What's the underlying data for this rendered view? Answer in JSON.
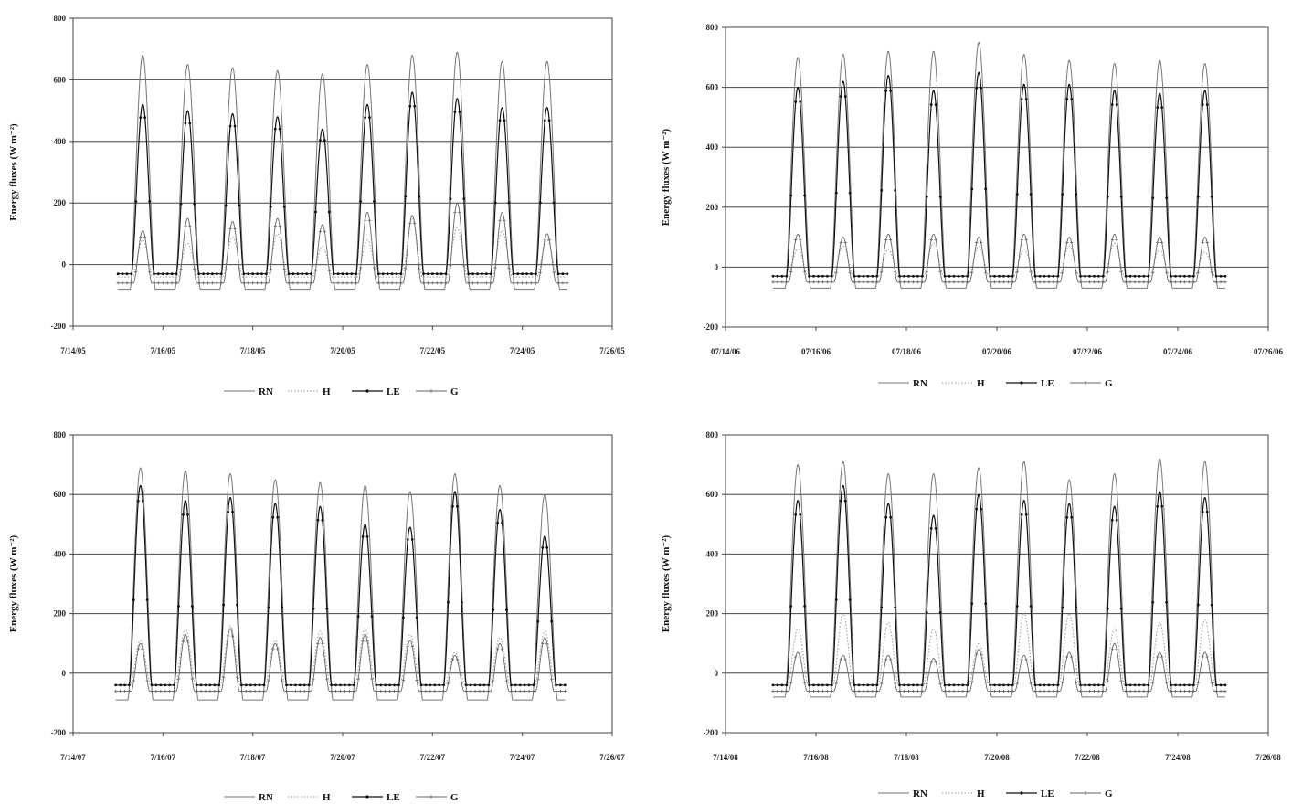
{
  "chart_data": [
    {
      "type": "line",
      "xlabel": "",
      "ylabel": "Energy fluxes (W m⁻²)",
      "ylim": [
        -200,
        800
      ],
      "yticks": [
        "-200",
        "0",
        "200",
        "400",
        "600",
        "800"
      ],
      "xticks": [
        "7/14/05",
        "7/16/05",
        "7/18/05",
        "7/20/05",
        "7/22/05",
        "7/24/05",
        "7/26/05"
      ],
      "grid": "horizontal",
      "legend": "bottom",
      "legend_labels": [
        "RN",
        "H",
        "LE",
        "G"
      ],
      "day_centers": [
        15.55,
        16.55,
        17.55,
        18.55,
        19.55,
        20.55,
        21.55,
        22.55,
        23.55,
        24.55
      ],
      "series": [
        {
          "name": "RN",
          "peak": [
            680,
            650,
            640,
            630,
            620,
            650,
            680,
            690,
            660,
            660
          ],
          "night": [
            -80,
            -80,
            -80,
            -80,
            -80,
            -80,
            -80,
            -80,
            -80,
            -80
          ]
        },
        {
          "name": "H",
          "peak": [
            80,
            70,
            90,
            100,
            60,
            80,
            150,
            120,
            110,
            80
          ],
          "night": [
            -40,
            -40,
            -40,
            -40,
            -40,
            -40,
            -40,
            -40,
            -40,
            -40
          ]
        },
        {
          "name": "LE",
          "peak": [
            520,
            500,
            490,
            480,
            440,
            520,
            560,
            540,
            510,
            510
          ],
          "night": [
            -30,
            -30,
            -30,
            -30,
            -30,
            -30,
            -30,
            -30,
            -30,
            -30
          ]
        },
        {
          "name": "G",
          "peak": [
            110,
            150,
            140,
            150,
            130,
            170,
            160,
            200,
            170,
            100
          ],
          "night": [
            -60,
            -60,
            -60,
            -60,
            -60,
            -60,
            -60,
            -60,
            -60,
            -60
          ]
        }
      ]
    },
    {
      "type": "line",
      "xlabel": "",
      "ylabel": "Energy fluxes (W m⁻²)",
      "ylim": [
        -200,
        800
      ],
      "yticks": [
        "-200",
        "0",
        "200",
        "400",
        "600",
        "800"
      ],
      "xticks": [
        "07/14/06",
        "07/16/06",
        "07/18/06",
        "07/20/06",
        "07/22/06",
        "07/24/06",
        "07/26/06"
      ],
      "grid": "horizontal",
      "legend": "bottom",
      "legend_labels": [
        "RN",
        "H",
        "LE",
        "G"
      ],
      "day_centers": [
        15.6,
        16.6,
        17.6,
        18.6,
        19.6,
        20.6,
        21.6,
        22.6,
        23.6,
        24.6
      ],
      "series": [
        {
          "name": "RN",
          "peak": [
            700,
            710,
            720,
            720,
            750,
            710,
            690,
            680,
            690,
            680
          ],
          "night": [
            -70,
            -70,
            -70,
            -70,
            -70,
            -70,
            -70,
            -70,
            -70,
            -70
          ]
        },
        {
          "name": "H",
          "peak": [
            60,
            70,
            60,
            80,
            70,
            60,
            70,
            80,
            60,
            50
          ],
          "night": [
            -30,
            -30,
            -30,
            -30,
            -30,
            -30,
            -30,
            -30,
            -30,
            -30
          ]
        },
        {
          "name": "LE",
          "peak": [
            600,
            620,
            640,
            590,
            650,
            610,
            610,
            590,
            580,
            590
          ],
          "night": [
            -30,
            -30,
            -30,
            -30,
            -30,
            -30,
            -30,
            -30,
            -30,
            -30
          ]
        },
        {
          "name": "G",
          "peak": [
            110,
            100,
            110,
            110,
            100,
            110,
            100,
            110,
            100,
            100
          ],
          "night": [
            -50,
            -50,
            -50,
            -50,
            -50,
            -50,
            -50,
            -50,
            -50,
            -50
          ]
        }
      ]
    },
    {
      "type": "line",
      "xlabel": "",
      "ylabel": "Energy fluxes (W m⁻²)",
      "ylim": [
        -200,
        800
      ],
      "yticks": [
        "-200",
        "0",
        "200",
        "400",
        "600",
        "800"
      ],
      "xticks": [
        "7/14/07",
        "7/16/07",
        "7/18/07",
        "7/20/07",
        "7/22/07",
        "7/24/07",
        "7/26/07"
      ],
      "grid": "horizontal",
      "legend": "bottom",
      "legend_labels": [
        "RN",
        "H",
        "LE",
        "G"
      ],
      "day_centers": [
        15.5,
        16.5,
        17.5,
        18.5,
        19.5,
        20.5,
        21.5,
        22.5,
        23.5,
        24.5
      ],
      "series": [
        {
          "name": "RN",
          "peak": [
            690,
            680,
            670,
            650,
            640,
            630,
            610,
            670,
            630,
            600
          ],
          "night": [
            -90,
            -90,
            -90,
            -90,
            -90,
            -90,
            -90,
            -90,
            -90,
            -90
          ]
        },
        {
          "name": "H",
          "peak": [
            110,
            150,
            160,
            110,
            140,
            150,
            130,
            70,
            120,
            140
          ],
          "night": [
            -40,
            -40,
            -40,
            -40,
            -40,
            -40,
            -40,
            -40,
            -40,
            -40
          ]
        },
        {
          "name": "LE",
          "peak": [
            630,
            580,
            590,
            570,
            560,
            500,
            490,
            610,
            550,
            460
          ],
          "night": [
            -40,
            -40,
            -40,
            -40,
            -40,
            -40,
            -40,
            -40,
            -40,
            -40
          ]
        },
        {
          "name": "G",
          "peak": [
            100,
            130,
            150,
            100,
            120,
            130,
            110,
            60,
            100,
            120
          ],
          "night": [
            -60,
            -60,
            -60,
            -60,
            -60,
            -60,
            -60,
            -60,
            -60,
            -60
          ]
        }
      ]
    },
    {
      "type": "line",
      "xlabel": "",
      "ylabel": "Energy fluxes (W m⁻²)",
      "ylim": [
        -200,
        800
      ],
      "yticks": [
        "-200",
        "0",
        "200",
        "400",
        "600",
        "800"
      ],
      "xticks": [
        "7/14/08",
        "7/16/08",
        "7/18/08",
        "7/20/08",
        "7/22/08",
        "7/24/08",
        "7/26/08"
      ],
      "grid": "horizontal",
      "legend": "bottom",
      "legend_labels": [
        "RN",
        "H",
        "LE",
        "G"
      ],
      "day_centers": [
        15.6,
        16.6,
        17.6,
        18.6,
        19.6,
        20.6,
        21.6,
        22.6,
        23.6,
        24.6
      ],
      "series": [
        {
          "name": "RN",
          "peak": [
            700,
            710,
            670,
            670,
            690,
            710,
            650,
            670,
            720,
            710
          ],
          "night": [
            -80,
            -80,
            -80,
            -80,
            -80,
            -80,
            -80,
            -80,
            -80,
            -80
          ]
        },
        {
          "name": "H",
          "peak": [
            150,
            200,
            170,
            150,
            100,
            200,
            200,
            150,
            170,
            180
          ],
          "night": [
            -40,
            -40,
            -40,
            -40,
            -40,
            -40,
            -40,
            -40,
            -40,
            -40
          ]
        },
        {
          "name": "LE",
          "peak": [
            580,
            630,
            570,
            530,
            600,
            580,
            570,
            560,
            610,
            590
          ],
          "night": [
            -40,
            -40,
            -40,
            -40,
            -40,
            -40,
            -40,
            -40,
            -40,
            -40
          ]
        },
        {
          "name": "G",
          "peak": [
            70,
            60,
            60,
            50,
            80,
            60,
            70,
            100,
            70,
            70
          ],
          "night": [
            -60,
            -60,
            -60,
            -60,
            -60,
            -60,
            -60,
            -60,
            -60,
            -60
          ]
        }
      ]
    }
  ]
}
